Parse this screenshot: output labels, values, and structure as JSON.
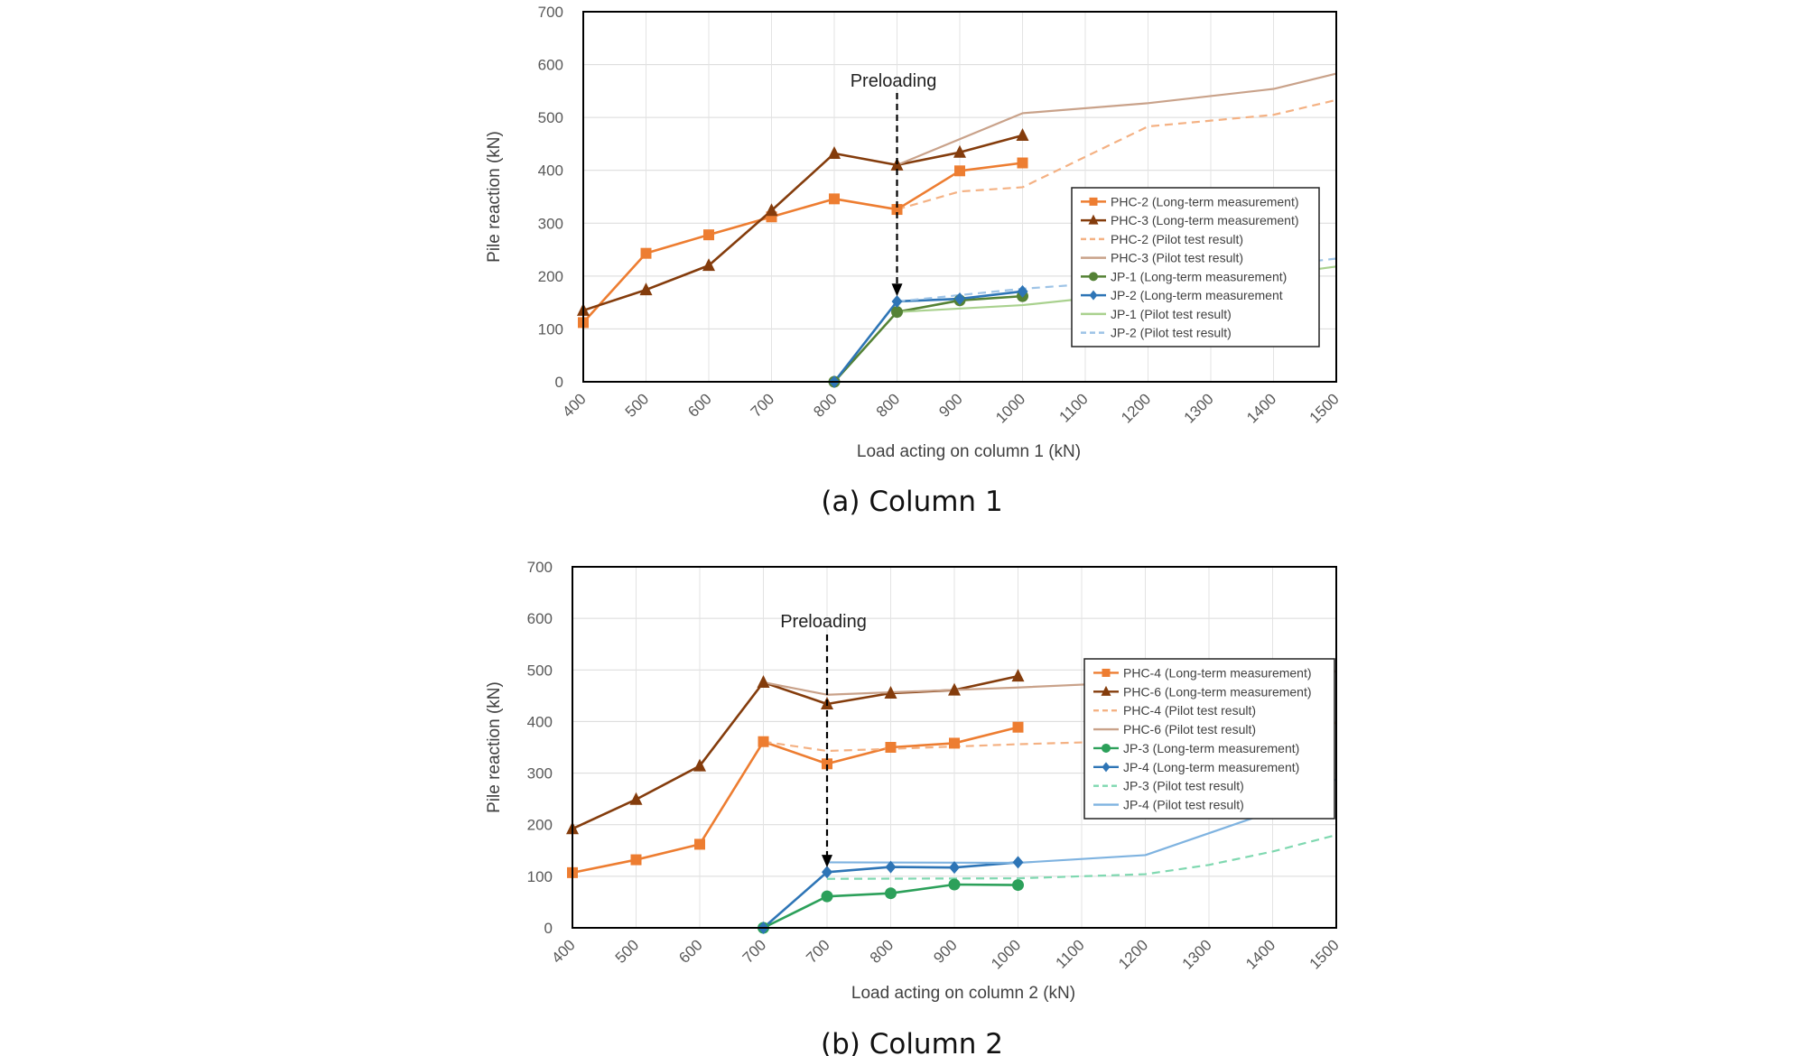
{
  "chart_data": [
    {
      "type": "line",
      "caption": "(a) Column 1",
      "xlabel": "Load acting on column 1 (kN)",
      "ylabel": "Pile reaction (kN)",
      "ylim": [
        0,
        700
      ],
      "yticks": [
        0,
        100,
        200,
        300,
        400,
        500,
        600,
        700
      ],
      "categories": [
        "400",
        "500",
        "600",
        "700",
        "800",
        "800",
        "900",
        "1000",
        "1100",
        "1200",
        "1300",
        "1400",
        "1500"
      ],
      "grid": true,
      "legend_position": "right",
      "annotation": {
        "text": "Preloading",
        "category_index": 5,
        "to_value": 155
      },
      "series": [
        {
          "name": "PHC-2 (Long-term measurement)",
          "style": "solid",
          "marker": "square",
          "color": "#ED7D31",
          "points": [
            [
              0,
              112
            ],
            [
              1,
              243
            ],
            [
              2,
              278
            ],
            [
              3,
              312
            ],
            [
              4,
              346
            ],
            [
              5,
              326
            ],
            [
              6,
              399
            ],
            [
              7,
              414
            ]
          ]
        },
        {
          "name": "PHC-3 (Long-term measurement)",
          "style": "solid",
          "marker": "triangle",
          "color": "#843C0C",
          "points": [
            [
              0,
              135
            ],
            [
              1,
              174
            ],
            [
              2,
              220
            ],
            [
              3,
              324
            ],
            [
              4,
              432
            ],
            [
              5,
              410
            ],
            [
              6,
              434
            ],
            [
              7,
              466
            ]
          ]
        },
        {
          "name": "PHC-2 (Pilot test result)",
          "style": "dashed",
          "marker": "none",
          "color": "#F4B183",
          "points": [
            [
              5,
              326
            ],
            [
              6,
              360
            ],
            [
              7,
              368
            ],
            [
              9,
              483
            ],
            [
              11,
              505
            ],
            [
              12,
              533
            ]
          ]
        },
        {
          "name": "PHC-3 (Pilot test result)",
          "style": "solid",
          "marker": "none",
          "color": "#C9A28A",
          "points": [
            [
              5,
              410
            ],
            [
              7,
              508
            ],
            [
              9,
              527
            ],
            [
              11,
              554
            ],
            [
              12,
              583
            ]
          ]
        },
        {
          "name": "JP-1 (Long-term measurement)",
          "style": "solid",
          "marker": "circle",
          "color": "#548235",
          "points": [
            [
              4,
              0
            ],
            [
              5,
              132
            ],
            [
              6,
              154
            ],
            [
              7,
              162
            ]
          ]
        },
        {
          "name": "JP-2 (Long-term measurement",
          "style": "solid",
          "marker": "diamond",
          "color": "#2E75B6",
          "points": [
            [
              4,
              0
            ],
            [
              5,
              152
            ],
            [
              6,
              157
            ],
            [
              7,
              171
            ]
          ]
        },
        {
          "name": "JP-1 (Pilot test result)",
          "style": "solid",
          "marker": "none",
          "color": "#A9D18E",
          "points": [
            [
              5,
              132
            ],
            [
              7,
              145
            ],
            [
              9,
              170
            ],
            [
              12,
              218
            ]
          ]
        },
        {
          "name": "JP-2 (Pilot test result)",
          "style": "dashed",
          "marker": "none",
          "color": "#9DC3E6",
          "points": [
            [
              5,
              152
            ],
            [
              7,
              176
            ],
            [
              9,
              193
            ],
            [
              12,
              233
            ]
          ]
        }
      ]
    },
    {
      "type": "line",
      "caption": "(b) Column 2",
      "xlabel": "Load acting on column 2 (kN)",
      "ylabel": "Pile reaction (kN)",
      "ylim": [
        0,
        700
      ],
      "yticks": [
        0,
        100,
        200,
        300,
        400,
        500,
        600,
        700
      ],
      "categories": [
        "400",
        "500",
        "600",
        "700",
        "700",
        "800",
        "900",
        "1000",
        "1100",
        "1200",
        "1300",
        "1400",
        "1500"
      ],
      "grid": true,
      "legend_position": "right",
      "annotation": {
        "text": "Preloading",
        "category_index": 4,
        "to_value": 110
      },
      "series": [
        {
          "name": "PHC-4 (Long-term measurement)",
          "style": "solid",
          "marker": "square",
          "color": "#ED7D31",
          "points": [
            [
              0,
              107
            ],
            [
              1,
              132
            ],
            [
              2,
              162
            ],
            [
              3,
              361
            ],
            [
              4,
              318
            ],
            [
              5,
              350
            ],
            [
              6,
              358
            ],
            [
              7,
              389
            ]
          ]
        },
        {
          "name": "PHC-6 (Long-term measurement)",
          "style": "solid",
          "marker": "triangle",
          "color": "#843C0C",
          "points": [
            [
              0,
              192
            ],
            [
              1,
              249
            ],
            [
              2,
              314
            ],
            [
              3,
              476
            ],
            [
              4,
              434
            ],
            [
              5,
              455
            ],
            [
              6,
              461
            ],
            [
              7,
              488
            ]
          ]
        },
        {
          "name": "PHC-4 (Pilot test result)",
          "style": "dashed",
          "marker": "none",
          "color": "#F4B183",
          "points": [
            [
              3,
              361
            ],
            [
              4,
              343
            ],
            [
              5,
              347
            ],
            [
              7,
              356
            ],
            [
              9,
              363
            ],
            [
              12,
              397
            ]
          ]
        },
        {
          "name": "PHC-6 (Pilot test result)",
          "style": "solid",
          "marker": "none",
          "color": "#C9A28A",
          "points": [
            [
              3,
              476
            ],
            [
              4,
              452
            ],
            [
              7,
              466
            ],
            [
              9,
              477
            ],
            [
              12,
              497
            ]
          ]
        },
        {
          "name": "JP-3 (Long-term measurement)",
          "style": "solid",
          "marker": "circle",
          "color": "#2CA05A",
          "points": [
            [
              3,
              0
            ],
            [
              4,
              61
            ],
            [
              5,
              67
            ],
            [
              6,
              84
            ],
            [
              7,
              83
            ]
          ]
        },
        {
          "name": "JP-4 (Long-term measurement)",
          "style": "solid",
          "marker": "diamond",
          "color": "#2E75B6",
          "points": [
            [
              3,
              0
            ],
            [
              4,
              108
            ],
            [
              5,
              118
            ],
            [
              6,
              117
            ],
            [
              7,
              127
            ]
          ]
        },
        {
          "name": "JP-3 (Pilot test result)",
          "style": "dashed",
          "marker": "none",
          "color": "#7FD8B0",
          "points": [
            [
              4,
              95
            ],
            [
              7,
              96
            ],
            [
              9,
              104
            ],
            [
              10,
              122
            ],
            [
              11,
              148
            ],
            [
              12,
              180
            ]
          ]
        },
        {
          "name": "JP-4 (Pilot test result)",
          "style": "solid",
          "marker": "none",
          "color": "#7FB3E0",
          "points": [
            [
              4,
              127
            ],
            [
              7,
              126
            ],
            [
              9,
              141
            ],
            [
              11,
              226
            ],
            [
              12,
              288
            ]
          ]
        }
      ]
    }
  ]
}
